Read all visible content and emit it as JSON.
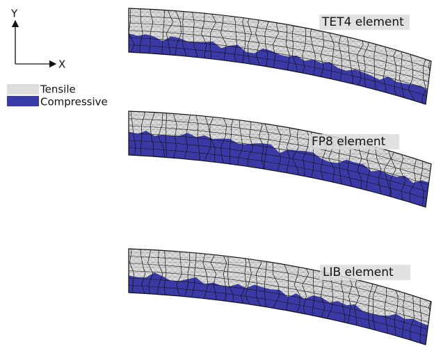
{
  "axes": {
    "y_label": "Y",
    "x_label": "X"
  },
  "legend": {
    "items": [
      "Tensile",
      "Compressive"
    ]
  },
  "panels": [
    {
      "label": "TET4 element"
    },
    {
      "label": "FP8 element"
    },
    {
      "label": "LIB element"
    }
  ]
}
